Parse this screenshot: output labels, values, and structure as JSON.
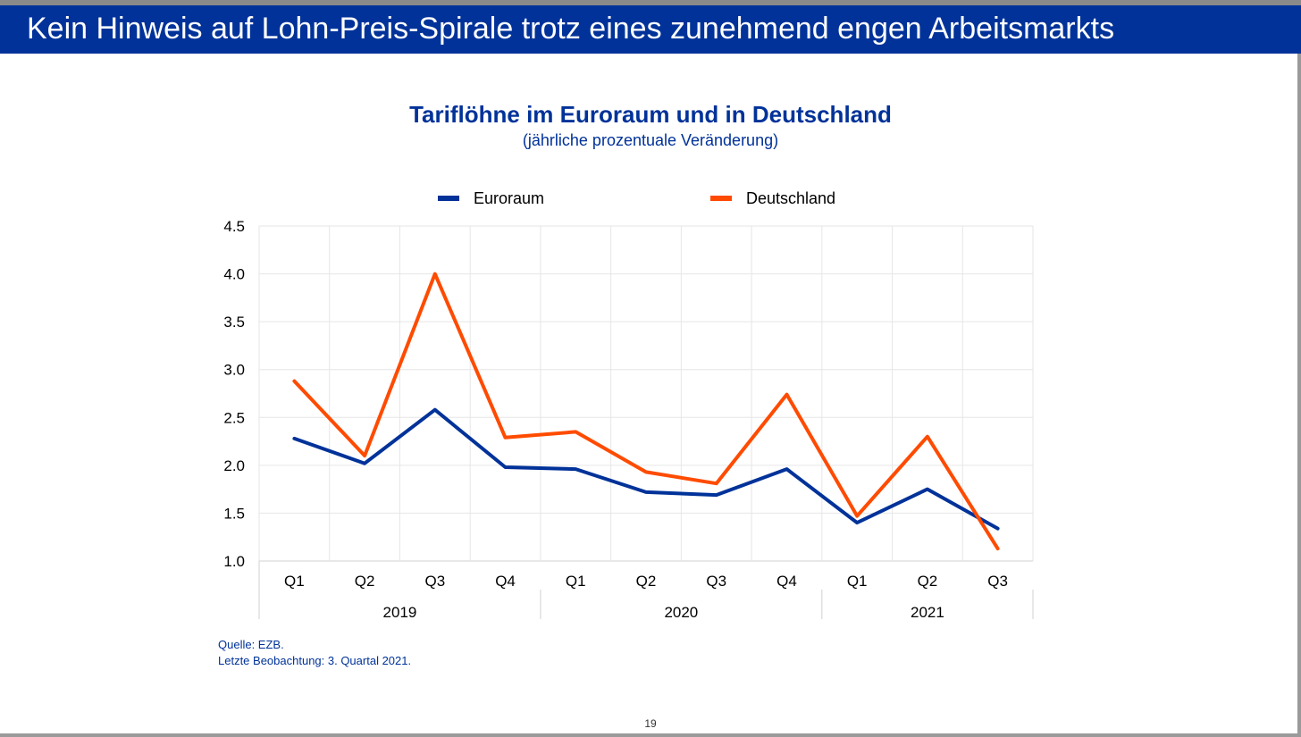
{
  "slide": {
    "title": "Kein Hinweis auf Lohn-Preis-Spirale trotz eines zunehmend engen Arbeitsmarkts",
    "source_line1": "Quelle: EZB.",
    "source_line2": "Letzte Beobachtung: 3. Quartal 2021.",
    "page_number": "19"
  },
  "colors": {
    "banner": "#003299",
    "euroraum": "#003299",
    "deutschland": "#ff4b00"
  },
  "chart_data": {
    "type": "line",
    "title": "Tariflöhne im Euroraum und in Deutschland",
    "subtitle": "(jährliche prozentuale Veränderung)",
    "categories": [
      "Q1",
      "Q2",
      "Q3",
      "Q4",
      "Q1",
      "Q2",
      "Q3",
      "Q4",
      "Q1",
      "Q2",
      "Q3"
    ],
    "groups": [
      {
        "label": "2019",
        "count": 4
      },
      {
        "label": "2020",
        "count": 4
      },
      {
        "label": "2021",
        "count": 3
      }
    ],
    "series": [
      {
        "name": "Euroraum",
        "color": "#003299",
        "values": [
          2.28,
          2.02,
          2.58,
          1.98,
          1.96,
          1.72,
          1.69,
          1.96,
          1.4,
          1.75,
          1.34
        ]
      },
      {
        "name": "Deutschland",
        "color": "#ff4b00",
        "values": [
          2.88,
          2.1,
          4.0,
          2.29,
          2.35,
          1.93,
          1.81,
          2.74,
          1.47,
          2.3,
          1.13
        ]
      }
    ],
    "ylim": [
      1.0,
      4.5
    ],
    "yticks": [
      "1.0",
      "1.5",
      "2.0",
      "2.5",
      "3.0",
      "3.5",
      "4.0",
      "4.5"
    ],
    "legend_position": "top",
    "grid": true
  }
}
